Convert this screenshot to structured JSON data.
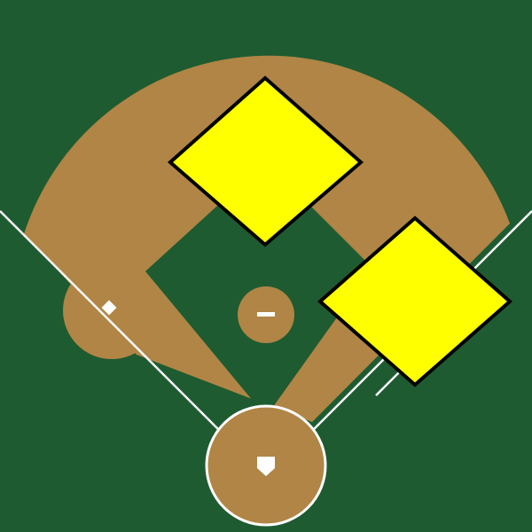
{
  "colors": {
    "grass": "#1E5B31",
    "dirt": "#B08545",
    "lines": "#FFFFFF",
    "highlight_fill": "#FFFF00",
    "highlight_stroke": "#000000"
  },
  "diagram": {
    "type": "baseball-field",
    "elements": [
      "infield-dirt",
      "infield-grass",
      "pitchers-mound",
      "pitchers-rubber",
      "home-plate-circle",
      "home-plate",
      "first-base",
      "second-base",
      "third-base",
      "foul-line-left",
      "foul-line-right",
      "first-base-runner-lane"
    ],
    "highlighted_markers": [
      {
        "id": "second-base-highlight",
        "shape": "diamond"
      },
      {
        "id": "first-base-highlight",
        "shape": "diamond"
      }
    ]
  }
}
